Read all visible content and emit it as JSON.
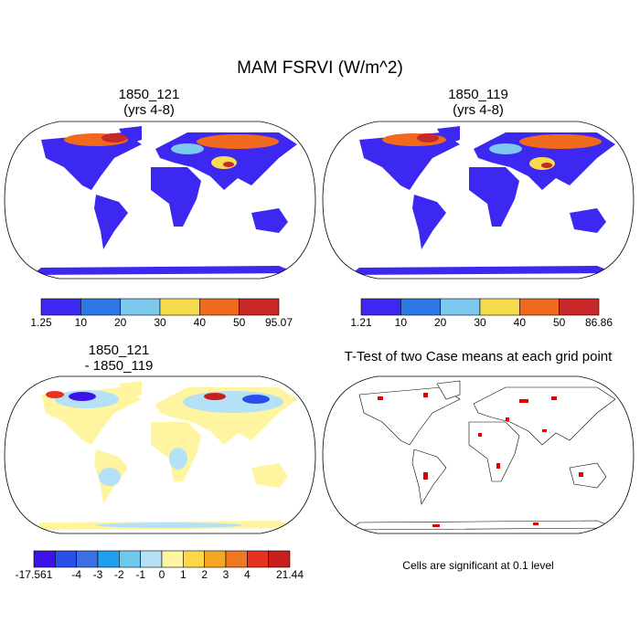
{
  "title": "MAM FSRVI (W/m^2)",
  "panels": [
    {
      "title": [
        "1850_121",
        "(yrs 4-8)"
      ],
      "colorbar": {
        "labels": [
          1.25,
          10,
          20,
          30,
          40,
          50,
          95.07
        ],
        "colors": [
          "#3c28f0",
          "#2e78e6",
          "#7cc8ee",
          "#f8dc50",
          "#f06a1e",
          "#c82828"
        ]
      }
    },
    {
      "title": [
        "1850_119",
        "(yrs 4-8)"
      ],
      "colorbar": {
        "labels": [
          1.21,
          10,
          20,
          30,
          40,
          50,
          86.86
        ],
        "colors": [
          "#3c28f0",
          "#2e78e6",
          "#7cc8ee",
          "#f8dc50",
          "#f06a1e",
          "#c82828"
        ]
      }
    },
    {
      "title": [
        "1850_121",
        "- 1850_119"
      ],
      "colorbar": {
        "labels": [
          -17.561,
          null,
          -4,
          -3,
          -2,
          -1,
          0,
          1,
          2,
          3,
          4,
          null,
          21.44
        ],
        "colors": [
          "#3c14ea",
          "#2850e8",
          "#3a6fe6",
          "#1ea0f0",
          "#6ec8ee",
          "#b4e1f6",
          "#fff5a0",
          "#ffd84a",
          "#f5a623",
          "#f07820",
          "#e6321e",
          "#c81e1e"
        ]
      }
    },
    {
      "title": [
        "T-Test of two Case means at each grid point"
      ],
      "note": "Cells are significant at 0.1 level"
    }
  ]
}
